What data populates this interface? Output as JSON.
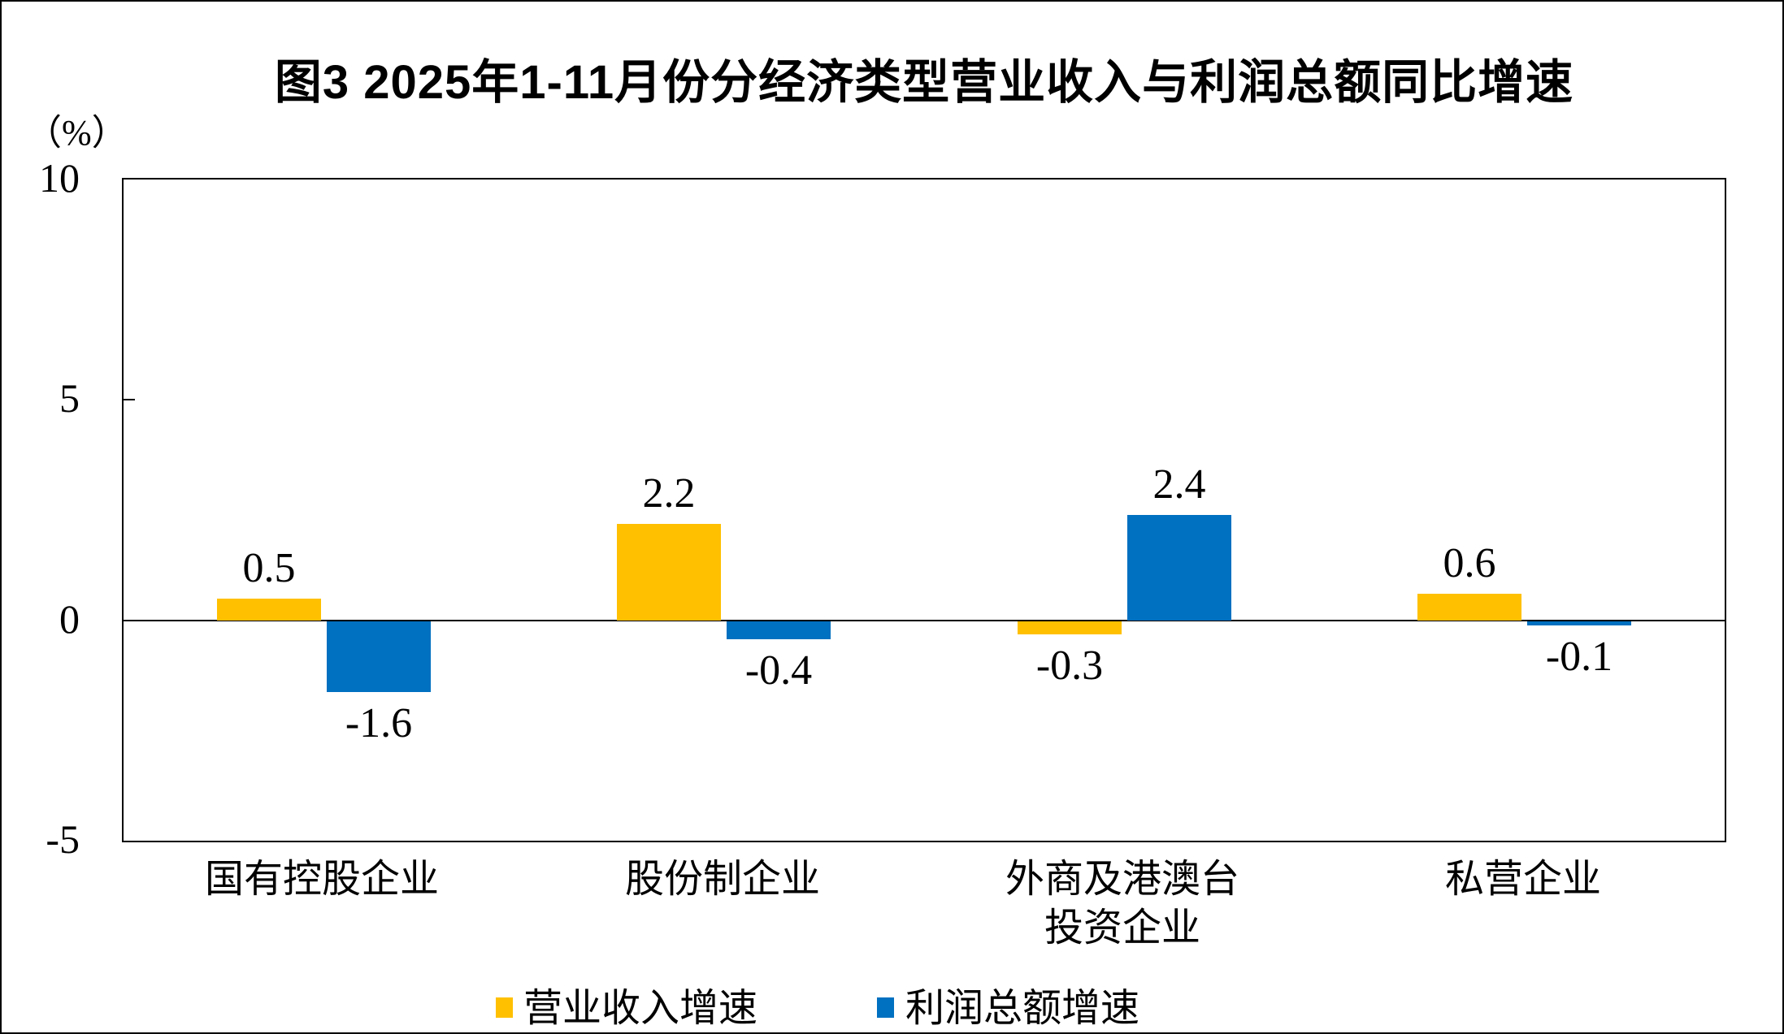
{
  "title": "图3  2025年1-11月份分经济类型营业收入与利润总额同比增速",
  "unit_label": "（%）",
  "chart_data": {
    "type": "bar",
    "title": "图3  2025年1-11月份分经济类型营业收入与利润总额同比增速",
    "ylabel": "（%）",
    "categories": [
      "国有控股企业",
      "股份制企业",
      "外商及港澳台投资企业",
      "私营企业"
    ],
    "category_display_lines": [
      [
        "国有控股企业"
      ],
      [
        "股份制企业"
      ],
      [
        "外商及港澳台",
        "投资企业"
      ],
      [
        "私营企业"
      ]
    ],
    "series": [
      {
        "name": "营业收入增速",
        "color": "#FFC000",
        "values": [
          0.5,
          2.2,
          -0.3,
          0.6
        ]
      },
      {
        "name": "利润总额增速",
        "color": "#0070C0",
        "values": [
          -1.6,
          -0.4,
          2.4,
          -0.1
        ]
      }
    ],
    "yticks": [
      10,
      5,
      0,
      -5
    ],
    "ylim": [
      -5,
      10
    ],
    "grid": false,
    "data_labels": true,
    "data_label_format": "one_decimal",
    "legend_position": "bottom"
  },
  "legend": {
    "items": [
      {
        "label": "营业收入增速",
        "color": "#FFC000"
      },
      {
        "label": "利润总额增速",
        "color": "#0070C0"
      }
    ]
  }
}
